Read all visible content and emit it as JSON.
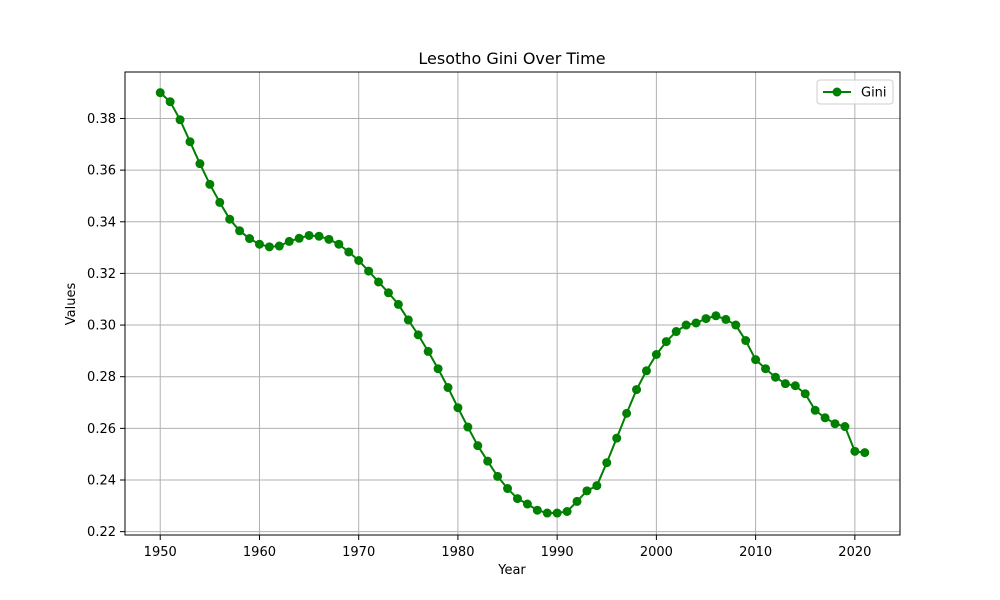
{
  "chart_data": {
    "type": "line",
    "title": "Lesotho Gini Over Time",
    "xlabel": "Year",
    "ylabel": "Values",
    "xlim": [
      1946.45,
      2024.55
    ],
    "ylim": [
      0.2187,
      0.398
    ],
    "xticks": [
      1950,
      1960,
      1970,
      1980,
      1990,
      2000,
      2010,
      2020
    ],
    "yticks": [
      0.22,
      0.24,
      0.26,
      0.28,
      0.3,
      0.32,
      0.34,
      0.36,
      0.38
    ],
    "ytick_labels": [
      "0.22",
      "0.24",
      "0.26",
      "0.28",
      "0.30",
      "0.32",
      "0.34",
      "0.36",
      "0.38"
    ],
    "grid": true,
    "legend_position": "top-right",
    "series": [
      {
        "name": "Gini",
        "color": "#008000",
        "marker": "circle",
        "x": [
          1950,
          1951,
          1952,
          1953,
          1954,
          1955,
          1956,
          1957,
          1958,
          1959,
          1960,
          1961,
          1962,
          1963,
          1964,
          1965,
          1966,
          1967,
          1968,
          1969,
          1970,
          1971,
          1972,
          1973,
          1974,
          1975,
          1976,
          1977,
          1978,
          1979,
          1980,
          1981,
          1982,
          1983,
          1984,
          1985,
          1986,
          1987,
          1988,
          1989,
          1990,
          1991,
          1992,
          1993,
          1994,
          1995,
          1996,
          1997,
          1998,
          1999,
          2000,
          2001,
          2002,
          2003,
          2004,
          2005,
          2006,
          2007,
          2008,
          2009,
          2010,
          2011,
          2012,
          2013,
          2014,
          2015,
          2016,
          2017,
          2018,
          2019,
          2020,
          2021
        ],
        "values": [
          0.39,
          0.3865,
          0.3795,
          0.371,
          0.3625,
          0.3545,
          0.3475,
          0.341,
          0.3365,
          0.3335,
          0.3313,
          0.3303,
          0.3306,
          0.3324,
          0.3336,
          0.3347,
          0.3344,
          0.3332,
          0.3313,
          0.3283,
          0.325,
          0.3209,
          0.3167,
          0.3125,
          0.308,
          0.302,
          0.2962,
          0.2898,
          0.2831,
          0.2758,
          0.268,
          0.2605,
          0.2533,
          0.2473,
          0.2414,
          0.2367,
          0.2328,
          0.2307,
          0.2283,
          0.2272,
          0.2272,
          0.2278,
          0.2317,
          0.2358,
          0.2378,
          0.2467,
          0.2562,
          0.2658,
          0.275,
          0.2823,
          0.2886,
          0.2936,
          0.2975,
          0.3,
          0.3008,
          0.3025,
          0.3036,
          0.3022,
          0.3,
          0.294,
          0.2866,
          0.2831,
          0.2798,
          0.2773,
          0.2765,
          0.2734,
          0.267,
          0.2641,
          0.2618,
          0.2607,
          0.2511,
          0.2506
        ]
      }
    ]
  }
}
